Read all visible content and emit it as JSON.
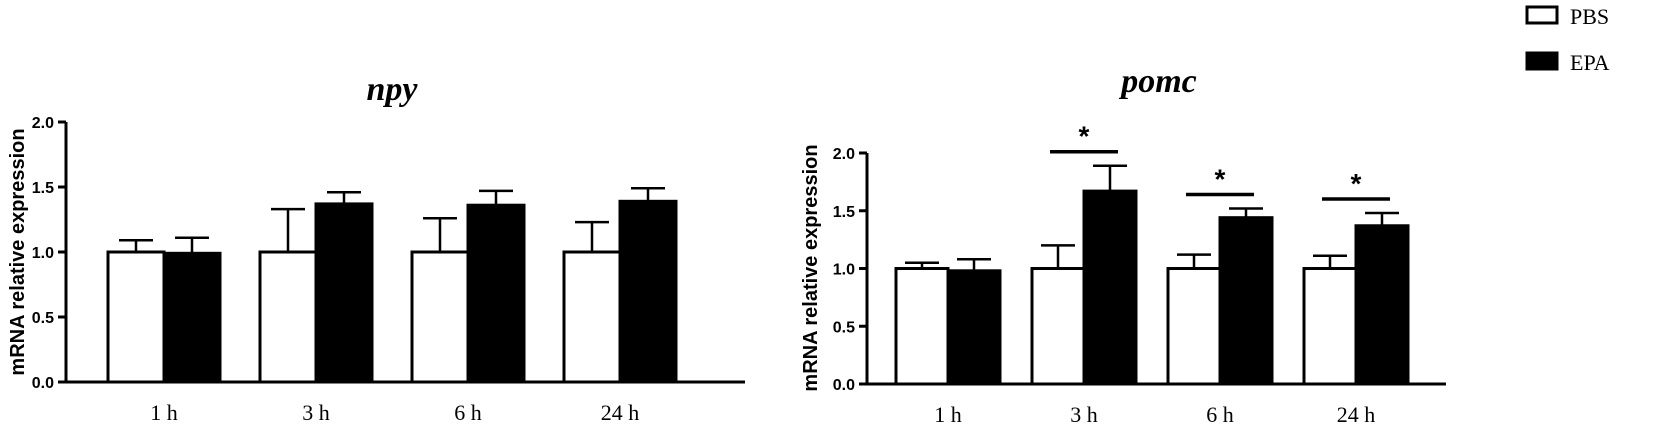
{
  "legend": {
    "placement": "top-right",
    "items": [
      {
        "label": "PBS",
        "color": "#ffffff"
      },
      {
        "label": "EPA",
        "color": "#000000"
      }
    ]
  },
  "chart_data": [
    {
      "type": "bar",
      "title": "npy",
      "ylabel": "mRNA relative expression",
      "xlabel": "",
      "ylim": [
        0,
        2.0
      ],
      "yticks": [
        "0.0",
        "0.5",
        "1.0",
        "1.5",
        "2.0"
      ],
      "grid": false,
      "categories": [
        "1 h",
        "3 h",
        "6 h",
        "24 h"
      ],
      "series": [
        {
          "name": "PBS",
          "values": [
            1.0,
            1.0,
            1.0,
            1.0
          ],
          "errors": [
            0.09,
            0.33,
            0.26,
            0.23
          ]
        },
        {
          "name": "EPA",
          "values": [
            0.99,
            1.37,
            1.36,
            1.39
          ],
          "errors": [
            0.12,
            0.09,
            0.11,
            0.1
          ]
        }
      ],
      "significance": []
    },
    {
      "type": "bar",
      "title": "pomc",
      "ylabel": "mRNA relative expression",
      "xlabel": "",
      "ylim": [
        0,
        2.0
      ],
      "yticks": [
        "0.0",
        "0.5",
        "1.0",
        "1.5",
        "2.0"
      ],
      "grid": false,
      "categories": [
        "1 h",
        "3 h",
        "6 h",
        "24 h"
      ],
      "series": [
        {
          "name": "PBS",
          "values": [
            1.0,
            1.0,
            1.0,
            1.0
          ],
          "errors": [
            0.05,
            0.2,
            0.12,
            0.11
          ]
        },
        {
          "name": "EPA",
          "values": [
            0.98,
            1.67,
            1.44,
            1.37
          ],
          "errors": [
            0.1,
            0.22,
            0.08,
            0.11
          ]
        }
      ],
      "significance": [
        {
          "category": "3 h",
          "label": "*"
        },
        {
          "category": "6 h",
          "label": "*"
        },
        {
          "category": "24 h",
          "label": "*"
        }
      ]
    }
  ]
}
